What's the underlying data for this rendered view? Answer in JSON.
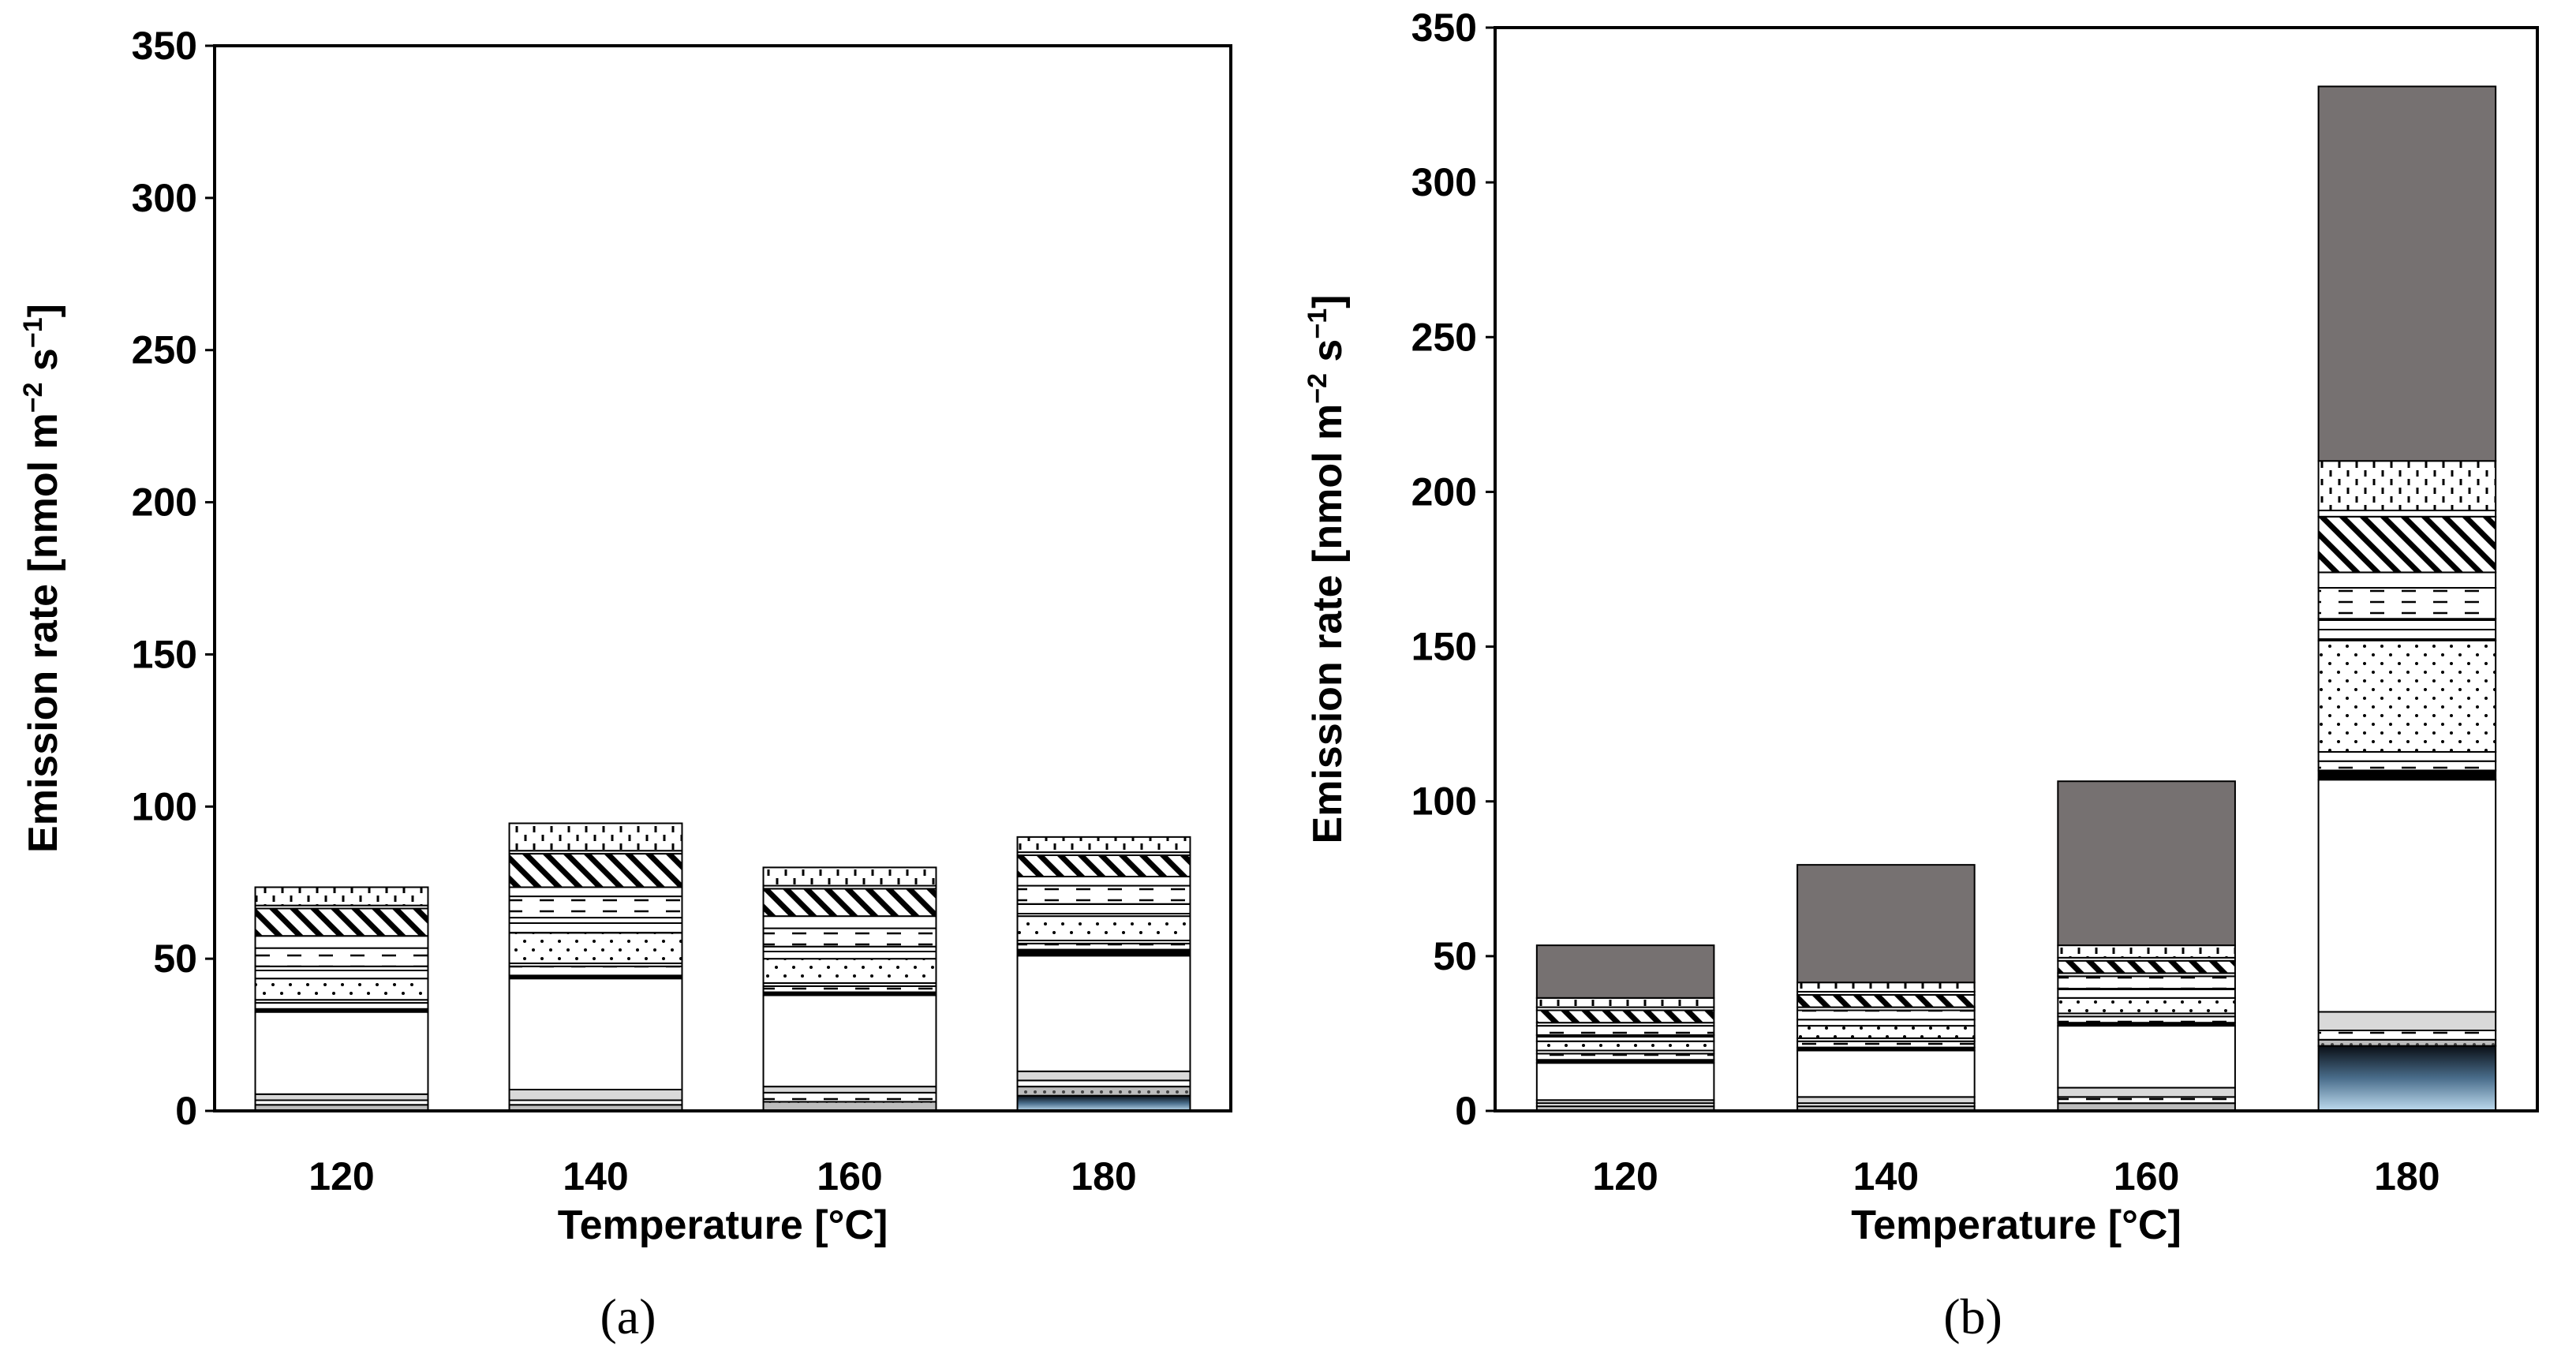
{
  "chart_data": [
    {
      "panel_label": "(a)",
      "type": "bar",
      "stacked": true,
      "categories": [
        "120",
        "140",
        "160",
        "180"
      ],
      "xlabel": "Temperature [°C]",
      "ylabel": "Emission rate [nmol m",
      "ylabel_sup1": "−2",
      "ylabel_mid": " s",
      "ylabel_sup2": "−1",
      "ylabel_end": "]",
      "ylim": [
        0,
        350
      ],
      "yticks": [
        "0",
        "50",
        "100",
        "150",
        "200",
        "250",
        "300",
        "350"
      ],
      "grid": false,
      "segments": [
        {
          "name": "s1",
          "style": "blue",
          "values": [
            0,
            0,
            0,
            5
          ]
        },
        {
          "name": "s2",
          "style": "dot-grey",
          "values": [
            2,
            2,
            3,
            3
          ]
        },
        {
          "name": "s3",
          "style": "dashes",
          "values": [
            1.5,
            1.5,
            3,
            2
          ]
        },
        {
          "name": "s4",
          "style": "light-grey",
          "values": [
            2,
            3.5,
            2,
            3
          ]
        },
        {
          "name": "s5",
          "style": "white",
          "values": [
            27,
            36.5,
            30,
            38
          ]
        },
        {
          "name": "s6",
          "style": "black",
          "values": [
            1,
            1,
            1,
            2
          ]
        },
        {
          "name": "s7",
          "style": "dashes",
          "values": [
            2,
            3,
            2,
            2
          ]
        },
        {
          "name": "s8",
          "style": "white",
          "values": [
            1,
            1,
            1,
            1
          ]
        },
        {
          "name": "s9",
          "style": "dots",
          "values": [
            7,
            10,
            8,
            8
          ]
        },
        {
          "name": "s10",
          "style": "hlines",
          "values": [
            4,
            5,
            4,
            4
          ]
        },
        {
          "name": "s11",
          "style": "dashes",
          "values": [
            6,
            7,
            6,
            6
          ]
        },
        {
          "name": "s12",
          "style": "white",
          "values": [
            4,
            3,
            4,
            3
          ]
        },
        {
          "name": "s13",
          "style": "diag",
          "values": [
            9,
            11,
            9,
            7
          ]
        },
        {
          "name": "s14",
          "style": "white",
          "values": [
            1,
            1,
            1,
            1
          ]
        },
        {
          "name": "s15",
          "style": "vdash",
          "values": [
            6,
            9,
            6,
            5
          ]
        }
      ]
    },
    {
      "panel_label": "(b)",
      "type": "bar",
      "stacked": true,
      "categories": [
        "120",
        "140",
        "160",
        "180"
      ],
      "xlabel": "Temperature [°C]",
      "ylabel": "Emission rate [nmol m",
      "ylabel_sup1": "−2",
      "ylabel_mid": " s",
      "ylabel_sup2": "−1",
      "ylabel_end": "]",
      "ylim": [
        0,
        350
      ],
      "yticks": [
        "0",
        "50",
        "100",
        "150",
        "200",
        "250",
        "300",
        "350"
      ],
      "grid": false,
      "segments": [
        {
          "name": "s1",
          "style": "blue",
          "values": [
            0,
            0,
            0,
            21
          ]
        },
        {
          "name": "s2",
          "style": "dot-grey",
          "values": [
            1.5,
            1.5,
            2.5,
            2
          ]
        },
        {
          "name": "s3",
          "style": "dashes",
          "values": [
            1,
            1,
            2,
            3
          ]
        },
        {
          "name": "s4",
          "style": "light-grey",
          "values": [
            1,
            2,
            3,
            6
          ]
        },
        {
          "name": "s5",
          "style": "white",
          "values": [
            12,
            15,
            20,
            75
          ]
        },
        {
          "name": "s6",
          "style": "black",
          "values": [
            1,
            1,
            1,
            3
          ]
        },
        {
          "name": "s7",
          "style": "dashes",
          "values": [
            2,
            2,
            2,
            3
          ]
        },
        {
          "name": "s8",
          "style": "white",
          "values": [
            1,
            1,
            1,
            3
          ]
        },
        {
          "name": "s9",
          "style": "dots",
          "values": [
            3,
            4,
            5,
            36
          ]
        },
        {
          "name": "s10",
          "style": "hlines",
          "values": [
            2,
            2,
            3,
            7
          ]
        },
        {
          "name": "s11",
          "style": "dashes",
          "values": [
            3,
            3,
            4,
            10
          ]
        },
        {
          "name": "s12",
          "style": "white",
          "values": [
            1,
            1,
            1,
            5
          ]
        },
        {
          "name": "s13",
          "style": "diag",
          "values": [
            4,
            4,
            4,
            18
          ]
        },
        {
          "name": "s14",
          "style": "white",
          "values": [
            1,
            1,
            1,
            2
          ]
        },
        {
          "name": "s15",
          "style": "vdash",
          "values": [
            3,
            3,
            4,
            16
          ]
        },
        {
          "name": "s16",
          "style": "dark-grey",
          "values": [
            17,
            38,
            53,
            121
          ]
        }
      ]
    }
  ]
}
